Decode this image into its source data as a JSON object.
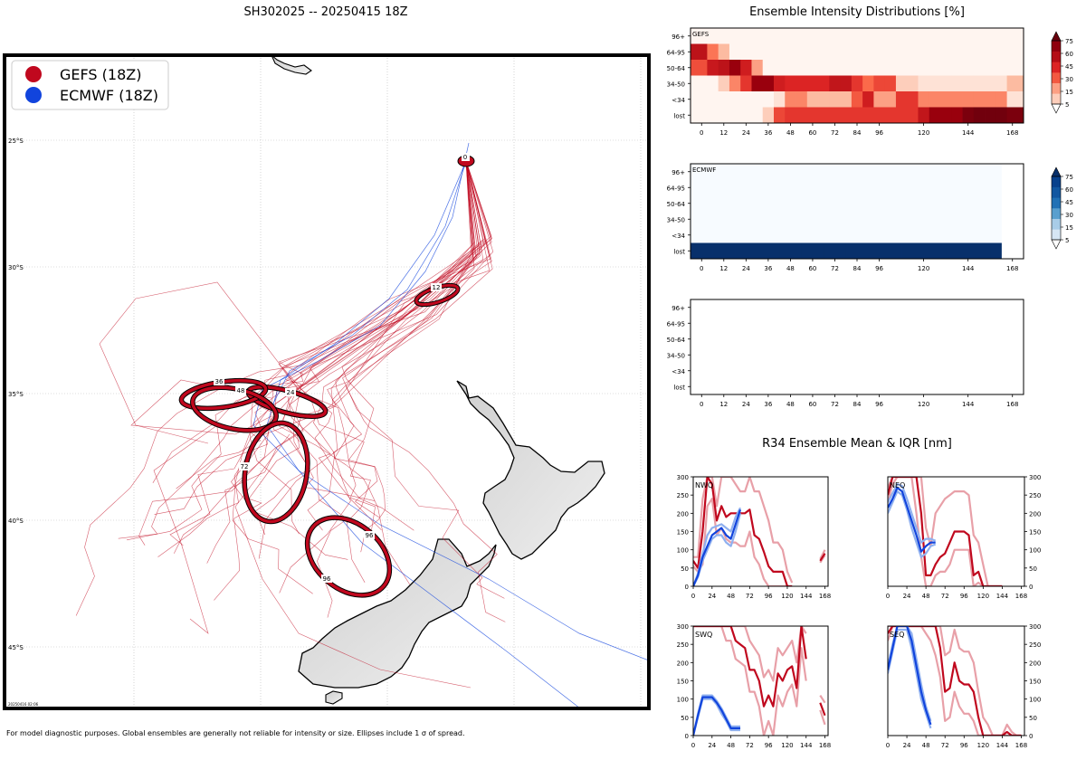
{
  "header": {
    "main_title": "SH302025 -- 20250415 18Z",
    "intensity_title": "Ensemble Intensity Distributions [%]",
    "r34_title": "R34 Ensemble Mean & IQR [nm]",
    "footer": "For model diagnostic purposes. Global ensembles are generally not reliable for intensity or size. Ellipses include 1 σ of spread.",
    "timestamp": "20250416 02:06"
  },
  "colors": {
    "gefs": "#c0081e",
    "gefs_light": "#e8a0a8",
    "ecmwf": "#1144dd",
    "ecmwf_light": "#8fb0ef",
    "grid": "#bbbbbb"
  },
  "map": {
    "legend": [
      {
        "label": "GEFS (18Z)",
        "color": "#c0081e"
      },
      {
        "label": "ECMWF (18Z)",
        "color": "#1144dd"
      }
    ],
    "lat_labels": [
      "25°S",
      "30°S",
      "35°S",
      "40°S",
      "45°S"
    ],
    "ellipse_labels": [
      "0",
      "12",
      "24",
      "36",
      "48",
      "72",
      "96",
      "96"
    ]
  },
  "heatmap_axes": {
    "row_labels": [
      "96+",
      "64-95",
      "50-64",
      "34-50",
      "<34",
      "lost"
    ],
    "x_ticks": [
      "0",
      "12",
      "24",
      "36",
      "48",
      "60",
      "72",
      "84",
      "96",
      "120",
      "144",
      "168"
    ],
    "x_tick_values": [
      0,
      12,
      24,
      36,
      48,
      60,
      72,
      84,
      96,
      120,
      144,
      168
    ],
    "colorbar_ticks": [
      "75",
      "60",
      "45",
      "30",
      "15",
      "5"
    ],
    "panel_labels": [
      "GEFS",
      "ECMWF",
      ""
    ]
  },
  "chart_data": [
    {
      "type": "heatmap",
      "title": "Ensemble Intensity Distributions [%]",
      "model": "GEFS",
      "rows": [
        "96+",
        "64-95",
        "50-64",
        "34-50",
        "<34",
        "lost"
      ],
      "x": [
        0,
        6,
        12,
        18,
        24,
        30,
        36,
        42,
        48,
        54,
        60,
        66,
        72,
        78,
        84,
        90,
        96,
        102,
        108,
        114,
        120,
        126,
        132,
        138,
        144,
        150,
        156,
        162,
        168
      ],
      "values": [
        [
          0,
          0,
          0,
          0,
          0,
          0,
          0,
          0,
          0,
          0,
          0,
          0,
          0,
          0,
          0,
          0,
          0,
          0,
          0,
          0,
          0,
          0,
          0,
          0,
          0,
          0,
          0,
          0,
          0
        ],
        [
          62,
          28,
          15,
          0,
          0,
          0,
          0,
          0,
          0,
          0,
          0,
          0,
          0,
          0,
          0,
          0,
          0,
          0,
          0,
          0,
          0,
          0,
          0,
          0,
          0,
          0,
          0,
          0,
          0
        ],
        [
          38,
          58,
          62,
          75,
          55,
          20,
          0,
          0,
          0,
          0,
          0,
          0,
          0,
          0,
          0,
          0,
          0,
          0,
          0,
          0,
          0,
          0,
          0,
          0,
          0,
          0,
          0,
          0,
          0
        ],
        [
          0,
          0,
          10,
          25,
          45,
          75,
          75,
          55,
          50,
          50,
          50,
          50,
          60,
          60,
          45,
          30,
          40,
          40,
          10,
          10,
          5,
          5,
          5,
          5,
          5,
          5,
          5,
          5,
          15
        ],
        [
          0,
          0,
          0,
          0,
          0,
          0,
          0,
          5,
          25,
          25,
          15,
          15,
          15,
          15,
          35,
          55,
          20,
          20,
          45,
          45,
          25,
          25,
          25,
          25,
          25,
          25,
          25,
          25,
          5
        ],
        [
          0,
          0,
          0,
          0,
          0,
          0,
          10,
          40,
          45,
          45,
          45,
          45,
          45,
          45,
          45,
          45,
          45,
          45,
          45,
          45,
          60,
          75,
          75,
          75,
          90,
          95,
          95,
          95,
          90
        ]
      ]
    },
    {
      "type": "heatmap",
      "model": "ECMWF",
      "rows": [
        "96+",
        "64-95",
        "50-64",
        "34-50",
        "<34",
        "lost"
      ],
      "x": [
        0,
        12,
        24,
        36,
        48,
        60,
        72,
        84,
        96,
        120,
        144,
        168
      ],
      "values": [
        [
          0,
          0,
          0,
          0,
          0,
          0,
          0,
          0,
          0,
          0,
          0,
          0
        ],
        [
          0,
          0,
          0,
          0,
          0,
          0,
          0,
          0,
          0,
          0,
          0,
          0
        ],
        [
          0,
          0,
          0,
          0,
          0,
          0,
          0,
          0,
          0,
          0,
          0,
          0
        ],
        [
          0,
          0,
          0,
          0,
          0,
          0,
          0,
          0,
          0,
          0,
          0,
          0
        ],
        [
          0,
          0,
          0,
          0,
          0,
          0,
          0,
          0,
          0,
          0,
          0,
          0
        ],
        [
          100,
          100,
          100,
          100,
          100,
          100,
          100,
          100,
          100,
          100,
          100,
          100
        ]
      ]
    },
    {
      "type": "line",
      "title": "R34 Ensemble Mean & IQR [nm]",
      "panel": "NWQ",
      "ylim": [
        0,
        300
      ],
      "xlim": [
        0,
        168
      ],
      "series": [
        {
          "name": "GEFS (18Z)",
          "x": [
            0,
            6,
            12,
            18,
            24,
            30,
            36,
            42,
            48,
            54,
            60,
            66,
            72,
            78,
            84,
            90,
            96,
            102,
            108,
            114,
            120,
            126,
            132,
            138,
            144,
            150,
            156,
            162,
            168
          ],
          "mean": [
            70,
            50,
            150,
            300,
            280,
            180,
            220,
            190,
            200,
            200,
            200,
            200,
            210,
            140,
            130,
            95,
            55,
            40,
            40,
            40,
            0,
            0,
            null,
            null,
            null,
            null,
            null,
            70,
            90
          ],
          "q25": [
            55,
            40,
            60,
            220,
            240,
            140,
            160,
            130,
            120,
            120,
            110,
            110,
            150,
            80,
            60,
            20,
            0,
            0,
            0,
            0,
            0,
            0,
            null,
            null,
            null,
            null,
            null,
            65,
            85
          ],
          "q75": [
            80,
            80,
            240,
            300,
            300,
            220,
            300,
            300,
            300,
            280,
            260,
            260,
            300,
            260,
            260,
            220,
            180,
            120,
            120,
            100,
            40,
            10,
            null,
            null,
            null,
            null,
            null,
            75,
            100
          ]
        },
        {
          "name": "ECMWF (18Z)",
          "x": [
            0,
            6,
            12,
            18,
            24,
            30,
            36,
            42,
            48,
            54,
            60
          ],
          "mean": [
            0,
            30,
            80,
            110,
            140,
            150,
            160,
            140,
            130,
            170,
            210
          ],
          "q25": [
            0,
            25,
            70,
            100,
            130,
            140,
            140,
            120,
            110,
            150,
            200
          ],
          "q75": [
            0,
            35,
            90,
            140,
            160,
            165,
            170,
            160,
            150,
            190,
            215
          ]
        }
      ]
    },
    {
      "type": "line",
      "panel": "NEQ",
      "ylim": [
        0,
        300
      ],
      "xlim": [
        0,
        168
      ],
      "series": [
        {
          "name": "GEFS (18Z)",
          "x": [
            0,
            6,
            12,
            18,
            24,
            30,
            36,
            42,
            48,
            54,
            60,
            66,
            72,
            78,
            84,
            90,
            96,
            102,
            108,
            114,
            120,
            126,
            132,
            138,
            144,
            150,
            156,
            162,
            168
          ],
          "mean": [
            250,
            300,
            300,
            300,
            300,
            300,
            300,
            200,
            30,
            30,
            60,
            80,
            90,
            120,
            150,
            150,
            150,
            140,
            30,
            40,
            0,
            0,
            0,
            0,
            0,
            null,
            null,
            null,
            0
          ],
          "q25": [
            230,
            280,
            300,
            300,
            300,
            300,
            200,
            80,
            0,
            0,
            30,
            40,
            40,
            60,
            100,
            100,
            100,
            100,
            0,
            10,
            0,
            0,
            0,
            0,
            0,
            null,
            null,
            null,
            0
          ],
          "q75": [
            270,
            300,
            300,
            300,
            300,
            300,
            300,
            300,
            160,
            110,
            200,
            220,
            240,
            250,
            260,
            260,
            260,
            250,
            140,
            120,
            60,
            0,
            0,
            0,
            0,
            null,
            null,
            null,
            0
          ]
        },
        {
          "name": "ECMWF (18Z)",
          "x": [
            0,
            6,
            12,
            18,
            24,
            30,
            36,
            42,
            48,
            54,
            60
          ],
          "mean": [
            215,
            240,
            270,
            260,
            220,
            180,
            140,
            95,
            110,
            120,
            120
          ],
          "q25": [
            200,
            230,
            260,
            250,
            210,
            160,
            120,
            80,
            90,
            110,
            115
          ],
          "q75": [
            230,
            255,
            280,
            275,
            240,
            200,
            160,
            120,
            130,
            130,
            125
          ]
        }
      ]
    },
    {
      "type": "line",
      "panel": "SWQ",
      "ylim": [
        0,
        300
      ],
      "xlim": [
        0,
        168
      ],
      "series": [
        {
          "name": "GEFS (18Z)",
          "x": [
            0,
            6,
            12,
            18,
            24,
            30,
            36,
            42,
            48,
            54,
            60,
            66,
            72,
            78,
            84,
            90,
            96,
            102,
            108,
            114,
            120,
            126,
            132,
            138,
            144,
            150,
            156,
            162,
            168
          ],
          "mean": [
            300,
            300,
            300,
            300,
            300,
            300,
            300,
            300,
            300,
            260,
            250,
            240,
            180,
            180,
            150,
            80,
            110,
            80,
            170,
            150,
            180,
            190,
            130,
            300,
            210,
            null,
            null,
            90,
            55
          ],
          "q25": [
            300,
            300,
            300,
            300,
            300,
            300,
            300,
            260,
            260,
            210,
            200,
            190,
            120,
            120,
            80,
            0,
            40,
            0,
            110,
            80,
            120,
            140,
            80,
            240,
            150,
            null,
            null,
            70,
            30
          ],
          "q75": [
            300,
            300,
            300,
            300,
            300,
            300,
            300,
            300,
            300,
            300,
            300,
            300,
            260,
            240,
            220,
            160,
            180,
            150,
            240,
            220,
            240,
            260,
            200,
            300,
            280,
            null,
            null,
            110,
            90
          ]
        },
        {
          "name": "ECMWF (18Z)",
          "x": [
            0,
            6,
            12,
            18,
            24,
            30,
            36,
            42,
            48,
            54,
            60
          ],
          "mean": [
            0,
            55,
            105,
            105,
            105,
            90,
            70,
            45,
            20,
            20,
            20
          ],
          "q25": [
            0,
            50,
            100,
            100,
            100,
            85,
            60,
            40,
            15,
            15,
            15
          ],
          "q75": [
            0,
            60,
            110,
            110,
            110,
            95,
            75,
            50,
            25,
            25,
            25
          ]
        }
      ]
    },
    {
      "type": "line",
      "panel": "SEQ",
      "ylim": [
        0,
        300
      ],
      "xlim": [
        0,
        168
      ],
      "series": [
        {
          "name": "GEFS (18Z)",
          "x": [
            0,
            6,
            12,
            18,
            24,
            30,
            36,
            42,
            48,
            54,
            60,
            66,
            72,
            78,
            84,
            90,
            96,
            102,
            108,
            114,
            120,
            126,
            132,
            138,
            144,
            150,
            156,
            162,
            168
          ],
          "mean": [
            280,
            300,
            300,
            300,
            300,
            300,
            300,
            300,
            300,
            300,
            300,
            240,
            120,
            130,
            200,
            150,
            140,
            140,
            120,
            50,
            0,
            0,
            0,
            0,
            0,
            10,
            0,
            0,
            0
          ],
          "q25": [
            260,
            300,
            300,
            300,
            300,
            300,
            300,
            300,
            280,
            260,
            220,
            160,
            40,
            50,
            120,
            80,
            60,
            60,
            40,
            0,
            0,
            0,
            0,
            0,
            0,
            0,
            0,
            0,
            0
          ],
          "q75": [
            300,
            300,
            300,
            300,
            300,
            300,
            300,
            300,
            300,
            300,
            300,
            300,
            220,
            230,
            290,
            240,
            230,
            230,
            200,
            120,
            50,
            30,
            0,
            0,
            0,
            30,
            10,
            0,
            0
          ]
        },
        {
          "name": "ECMWF (18Z)",
          "x": [
            0,
            6,
            12,
            18,
            24,
            30,
            36,
            42,
            48,
            54
          ],
          "mean": [
            180,
            240,
            300,
            300,
            300,
            260,
            190,
            120,
            70,
            30
          ],
          "q25": [
            170,
            230,
            290,
            290,
            290,
            240,
            170,
            100,
            60,
            20
          ],
          "q75": [
            190,
            250,
            300,
            300,
            300,
            280,
            210,
            140,
            80,
            40
          ]
        }
      ]
    }
  ]
}
